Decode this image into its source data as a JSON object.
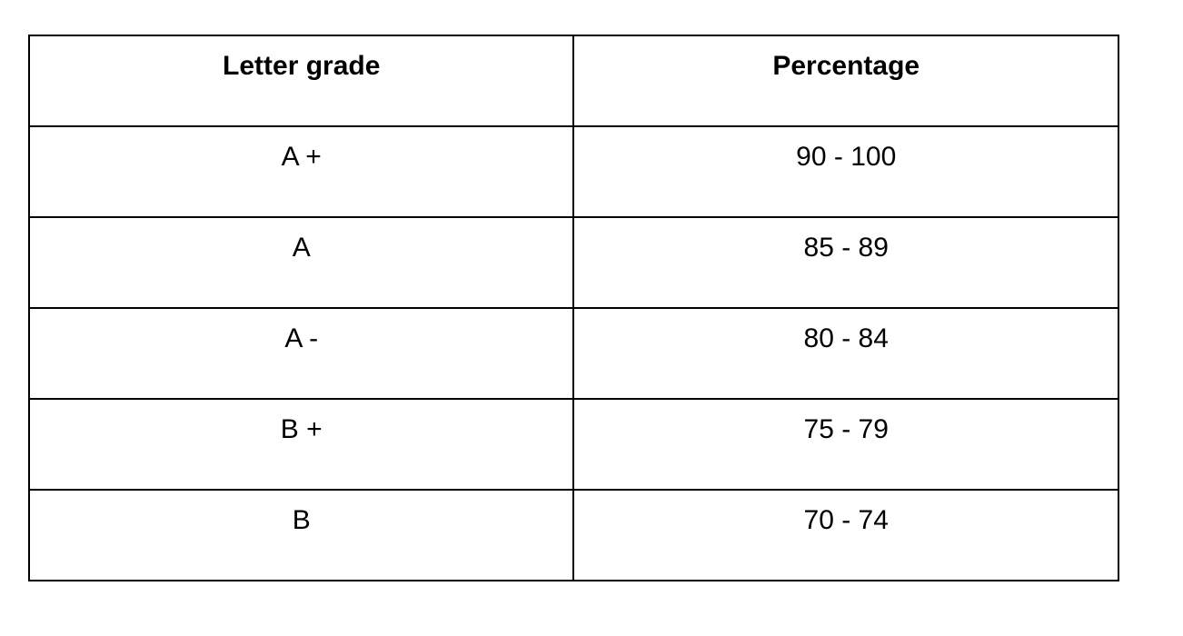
{
  "table": {
    "header": [
      "Letter grade",
      "Percentage"
    ],
    "rows": [
      [
        "A +",
        "90 - 100"
      ],
      [
        "A",
        "85 - 89"
      ],
      [
        "A -",
        "80 - 84"
      ],
      [
        "B +",
        "75 - 79"
      ],
      [
        "B",
        "70 - 74"
      ]
    ]
  }
}
